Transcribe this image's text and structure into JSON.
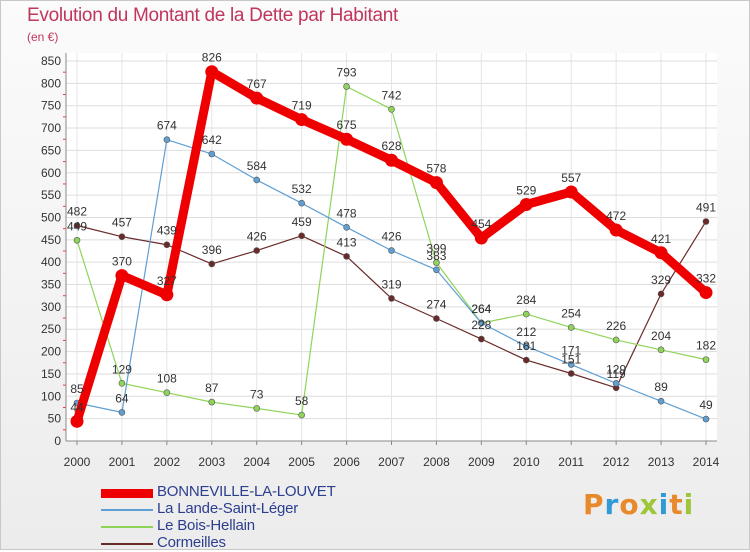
{
  "title": "Evolution du Montant de la Dette par Habitant",
  "subtitle": "(en €)",
  "logo_text": "Proxiti",
  "logo_colors": [
    "#e8892b",
    "#2f9ad6",
    "#e8892b",
    "#9dc63b",
    "#2f9ad6",
    "#e8892b",
    "#9dc63b"
  ],
  "chart_data": {
    "type": "line",
    "x": [
      "2000",
      "2001",
      "2002",
      "2003",
      "2004",
      "2005",
      "2006",
      "2007",
      "2008",
      "2009",
      "2010",
      "2011",
      "2012",
      "2013",
      "2014"
    ],
    "ylim": [
      0,
      850
    ],
    "yticks": [
      0,
      50,
      100,
      150,
      200,
      250,
      300,
      350,
      400,
      450,
      500,
      550,
      600,
      650,
      700,
      750,
      800,
      850
    ],
    "grid": true,
    "legend_position": "bottom-left",
    "series": [
      {
        "name": "BONNEVILLE-LA-LOUVET",
        "color": "#ee0000",
        "values": [
          44,
          370,
          327,
          826,
          767,
          719,
          675,
          628,
          578,
          454,
          529,
          557,
          472,
          421,
          332
        ],
        "labels": [
          "44",
          "370",
          "327",
          "826",
          "767",
          "719",
          "675",
          "628",
          "578",
          "454",
          "529",
          "557",
          "472",
          "421",
          "332"
        ]
      },
      {
        "name": "La Lande-Saint-Léger",
        "color": "#5f9fd4",
        "values": [
          85,
          64,
          674,
          642,
          584,
          532,
          478,
          426,
          383,
          264,
          212,
          171,
          129,
          89,
          49
        ],
        "labels": [
          "85",
          "64",
          "674",
          "642",
          "584",
          "532",
          "478",
          "426",
          "383",
          "264",
          "212",
          "171",
          "129",
          "89",
          "49"
        ]
      },
      {
        "name": "Le Bois-Hellain",
        "color": "#8fd45a",
        "values": [
          449,
          129,
          108,
          87,
          73,
          58,
          793,
          742,
          399,
          264,
          284,
          254,
          226,
          204,
          182
        ],
        "labels": [
          "449",
          "129",
          "108",
          "87",
          "73",
          "58",
          "793",
          "742",
          "399",
          "264",
          "284",
          "254",
          "226",
          "204",
          "182"
        ]
      },
      {
        "name": "Cormeilles",
        "color": "#6b2a2a",
        "values": [
          482,
          457,
          439,
          396,
          426,
          459,
          413,
          319,
          274,
          228,
          181,
          151,
          119,
          329,
          491
        ],
        "labels": [
          "482",
          "457",
          "439",
          "396",
          "426",
          "459",
          "413",
          "319",
          "274",
          "228",
          "181",
          "151",
          "119",
          "329",
          "491"
        ]
      }
    ]
  }
}
